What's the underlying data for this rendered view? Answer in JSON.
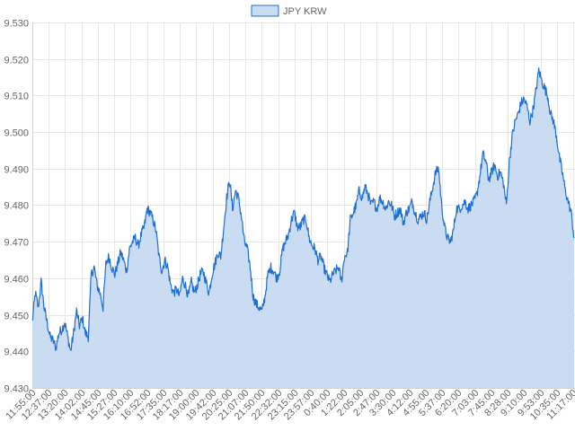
{
  "chart_data": {
    "type": "area",
    "legend": {
      "position": "top-center",
      "label": "JPY KRW"
    },
    "colors": {
      "line": "#1f6fd1",
      "fill": "#c9dcf2",
      "legend_fill": "#c9dcf2",
      "legend_border": "#1f6fd1",
      "grid": "#e6e6e6"
    },
    "grid": true,
    "ylim": [
      9.43,
      9.53
    ],
    "y_ticks": [
      "9.430",
      "9.440",
      "9.450",
      "9.460",
      "9.470",
      "9.480",
      "9.490",
      "9.500",
      "9.510",
      "9.520",
      "9.530"
    ],
    "x_ticks": [
      "11:55:00",
      "12:37:00",
      "13:20:00",
      "14:02:00",
      "14:45:00",
      "15:27:00",
      "16:10:00",
      "16:52:00",
      "17:35:00",
      "18:17:00",
      "19:00:00",
      "19:42:00",
      "20:25:00",
      "21:07:00",
      "21:50:00",
      "22:32:00",
      "23:15:00",
      "23:57:00",
      "0:40:00",
      "1:22:00",
      "2:05:00",
      "2:47:00",
      "3:30:00",
      "4:12:00",
      "4:55:00",
      "5:37:00",
      "6:20:00",
      "7:03:00",
      "7:45:00",
      "8:28:00",
      "9:10:00",
      "9:53:00",
      "10:35:00",
      "11:17:00"
    ],
    "series": [
      {
        "name": "JPY KRW",
        "values": [
          9.448,
          9.456,
          9.452,
          9.459,
          9.452,
          9.448,
          9.444,
          9.443,
          9.441,
          9.445,
          9.446,
          9.448,
          9.444,
          9.44,
          9.445,
          9.451,
          9.447,
          9.449,
          9.445,
          9.444,
          9.461,
          9.463,
          9.458,
          9.456,
          9.452,
          9.464,
          9.466,
          9.463,
          9.461,
          9.464,
          9.467,
          9.465,
          9.462,
          9.468,
          9.47,
          9.471,
          9.469,
          9.472,
          9.474,
          9.479,
          9.478,
          9.476,
          9.473,
          9.466,
          9.462,
          9.465,
          9.463,
          9.458,
          9.456,
          9.457,
          9.455,
          9.46,
          9.458,
          9.455,
          9.459,
          9.456,
          9.458,
          9.461,
          9.462,
          9.459,
          9.456,
          9.461,
          9.464,
          9.467,
          9.466,
          9.474,
          9.482,
          9.487,
          9.479,
          9.484,
          9.482,
          9.477,
          9.47,
          9.468,
          9.463,
          9.455,
          9.453,
          9.452,
          9.451,
          9.455,
          9.461,
          9.463,
          9.462,
          9.46,
          9.462,
          9.468,
          9.47,
          9.472,
          9.476,
          9.478,
          9.474,
          9.474,
          9.476,
          9.476,
          9.471,
          9.469,
          9.468,
          9.465,
          9.466,
          9.463,
          9.461,
          9.459,
          9.461,
          9.462,
          9.463,
          9.459,
          9.466,
          9.467,
          9.476,
          9.478,
          9.48,
          9.484,
          9.482,
          9.485,
          9.483,
          9.48,
          9.481,
          9.479,
          9.482,
          9.481,
          9.479,
          9.481,
          9.48,
          9.477,
          9.478,
          9.479,
          9.475,
          9.478,
          9.479,
          9.481,
          9.478,
          9.476,
          9.477,
          9.478,
          9.476,
          9.481,
          9.485,
          9.489,
          9.49,
          9.48,
          9.474,
          9.471,
          9.47,
          9.473,
          9.479,
          9.479,
          9.48,
          9.481,
          9.479,
          9.48,
          9.481,
          9.483,
          9.488,
          9.494,
          9.492,
          9.487,
          9.489,
          9.491,
          9.488,
          9.489,
          9.486,
          9.48,
          9.492,
          9.499,
          9.503,
          9.505,
          9.508,
          9.509,
          9.507,
          9.503,
          9.506,
          9.511,
          9.517,
          9.514,
          9.512,
          9.51,
          9.505,
          9.503,
          9.499,
          9.493,
          9.489,
          9.484,
          9.481,
          9.478,
          9.471
        ]
      }
    ]
  }
}
